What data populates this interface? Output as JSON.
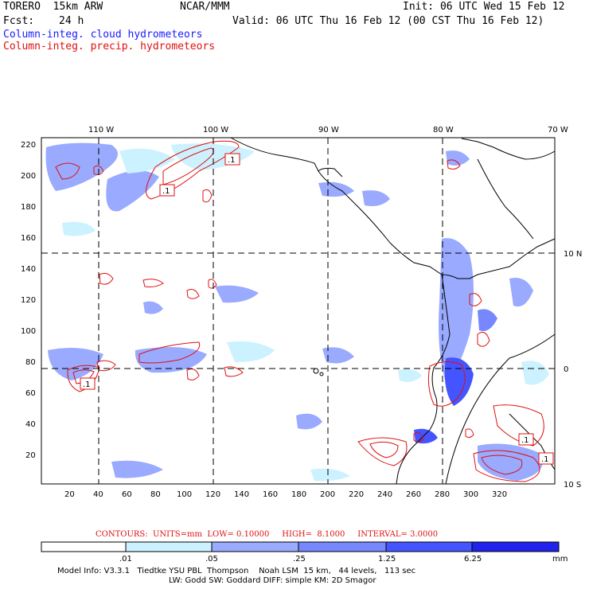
{
  "header": {
    "title_left": "TORERO  15km ARW",
    "title_center": "NCAR/MMM",
    "init": "Init: 06 UTC Wed 15 Feb 12",
    "fcst_label": "Fcst:",
    "fcst_value": "24 h",
    "valid": "Valid: 06 UTC Thu 16 Feb 12 (00 CST Thu 16 Feb 12)",
    "legend_cloud": "Column-integ. cloud hydrometeors",
    "legend_precip": "Column-integ. precip. hydrometeors"
  },
  "colors": {
    "cloud": "#1a1aff",
    "precip": "#e01010",
    "shade_1": "#ccf2ff",
    "shade_2": "#99aaff",
    "shade_3": "#7788ff",
    "shade_4": "#4455ff",
    "shade_5": "#2222ee"
  },
  "map": {
    "lon_labels": [
      "110 W",
      "100 W",
      "90 W",
      "80 W",
      "70 W"
    ],
    "lat_labels": [
      "10 N",
      "0",
      "10 S"
    ],
    "y_ticks": [
      "220",
      "200",
      "180",
      "160",
      "140",
      "120",
      "100",
      "80",
      "60",
      "40",
      "20"
    ],
    "x_ticks": [
      "20",
      "40",
      "60",
      "80",
      "100",
      "120",
      "140",
      "160",
      "180",
      "200",
      "220",
      "240",
      "260",
      "280",
      "300",
      "320"
    ],
    "contour_labels": [
      ".1",
      ".1",
      ".1",
      ".1",
      ".1"
    ]
  },
  "contours_info": "CONTOURS:  UNITS=mm  LOW= 0.10000     HIGH=  8.1000     INTERVAL= 3.0000",
  "colorbar": {
    "labels": [
      ".01",
      ".05",
      ".25",
      "1.25",
      "6.25"
    ],
    "unit": "mm"
  },
  "model_info": {
    "line1": "Model Info: V3.3.1   Tiedtke YSU PBL  Thompson    Noah LSM  15 km,   44 levels,   113 sec",
    "line2": "LW: Godd SW: Goddard DIFF: simple KM: 2D Smagor"
  }
}
